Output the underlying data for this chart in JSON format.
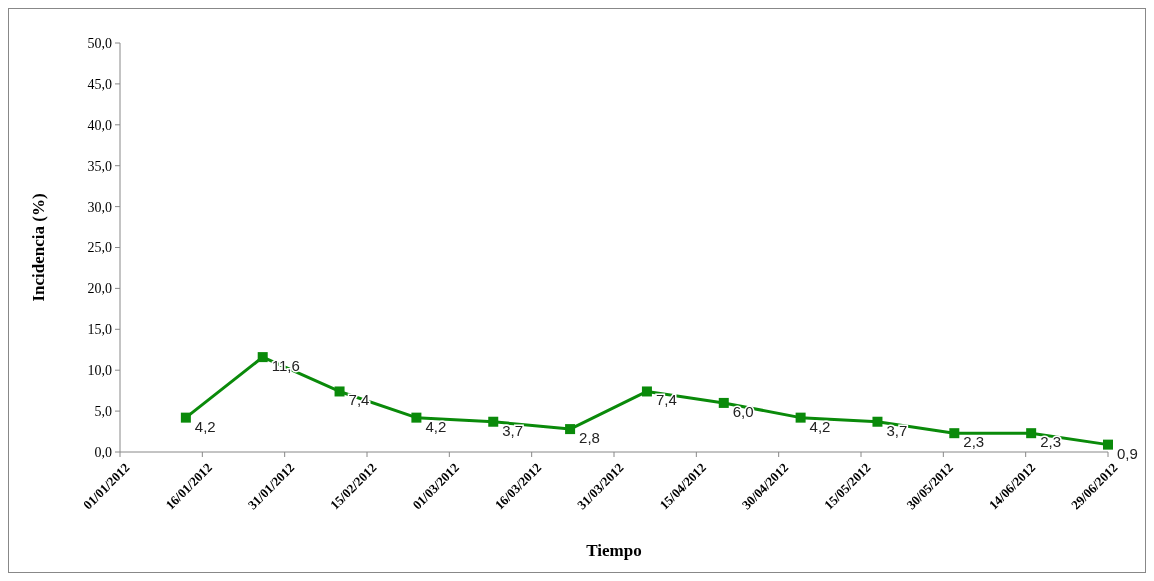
{
  "chart_data": {
    "type": "line",
    "xlabel": "Tiempo",
    "ylabel": "Incidencia (%)",
    "x": [
      "2012-01-13",
      "2012-01-27",
      "2012-02-10",
      "2012-02-24",
      "2012-03-09",
      "2012-03-23",
      "2012-04-06",
      "2012-04-20",
      "2012-05-04",
      "2012-05-18",
      "2012-06-01",
      "2012-06-15",
      "2012-06-29"
    ],
    "series": [
      {
        "color": "#0a8a0a",
        "values": [
          4.2,
          11.6,
          7.4,
          4.2,
          3.7,
          2.8,
          7.4,
          6.0,
          4.2,
          3.7,
          2.3,
          2.3,
          0.9
        ],
        "value_labels": [
          "4,2",
          "11,6",
          "7,4",
          "4,2",
          "3,7",
          "2,8",
          "7,4",
          "6,0",
          "4,2",
          "3,7",
          "2,3",
          "2,3",
          "0,9"
        ]
      }
    ],
    "xlim": [
      "2012-01-01",
      "2012-06-29"
    ],
    "xticks": [
      {
        "value": "2012-01-01",
        "label": "01/01/2012"
      },
      {
        "value": "2012-01-16",
        "label": "16/01/2012"
      },
      {
        "value": "2012-01-31",
        "label": "31/01/2012"
      },
      {
        "value": "2012-02-15",
        "label": "15/02/2012"
      },
      {
        "value": "2012-03-01",
        "label": "01/03/2012"
      },
      {
        "value": "2012-03-16",
        "label": "16/03/2012"
      },
      {
        "value": "2012-03-31",
        "label": "31/03/2012"
      },
      {
        "value": "2012-04-15",
        "label": "15/04/2012"
      },
      {
        "value": "2012-04-30",
        "label": "30/04/2012"
      },
      {
        "value": "2012-05-15",
        "label": "15/05/2012"
      },
      {
        "value": "2012-05-30",
        "label": "30/05/2012"
      },
      {
        "value": "2012-06-14",
        "label": "14/06/2012"
      },
      {
        "value": "2012-06-29",
        "label": "29/06/2012"
      }
    ],
    "ylim": [
      0,
      50
    ],
    "yticks": [
      {
        "value": 0,
        "label": "0,0"
      },
      {
        "value": 5,
        "label": "5,0"
      },
      {
        "value": 10,
        "label": "10,0"
      },
      {
        "value": 15,
        "label": "15,0"
      },
      {
        "value": 20,
        "label": "20,0"
      },
      {
        "value": 25,
        "label": "25,0"
      },
      {
        "value": 30,
        "label": "30,0"
      },
      {
        "value": 35,
        "label": "35,0"
      },
      {
        "value": 40,
        "label": "40,0"
      },
      {
        "value": 45,
        "label": "45,0"
      },
      {
        "value": 50,
        "label": "50,0"
      }
    ],
    "grid": false,
    "marker": "square",
    "line_style": "solid"
  }
}
